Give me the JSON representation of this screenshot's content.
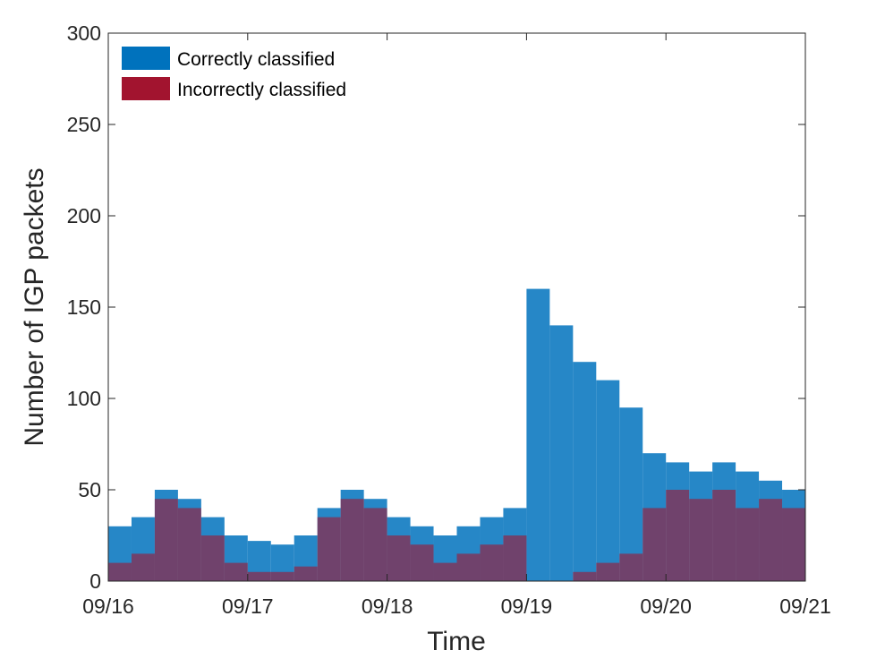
{
  "chart_data": {
    "type": "bar",
    "xlabel": "Time",
    "ylabel": "Number of IGP packets",
    "ylim": [
      0,
      300
    ],
    "yticks": [
      0,
      50,
      100,
      150,
      200,
      250,
      300
    ],
    "xlim": [
      "09/16",
      "09/21"
    ],
    "xtick_labels": [
      "09/16",
      "09/17",
      "09/18",
      "09/19",
      "09/20",
      "09/21"
    ],
    "grid": false,
    "legend_position": "top-left",
    "series": [
      {
        "name": "Correctly classified",
        "color": "#0072BD",
        "x": [
          "09/16 00:00",
          "09/16 04:00",
          "09/16 08:00",
          "09/16 12:00",
          "09/16 16:00",
          "09/16 20:00",
          "09/17 00:00",
          "09/17 04:00",
          "09/17 08:00",
          "09/17 12:00",
          "09/17 16:00",
          "09/17 20:00",
          "09/18 00:00",
          "09/18 04:00",
          "09/18 08:00",
          "09/18 12:00",
          "09/18 16:00",
          "09/18 20:00",
          "09/19 00:00",
          "09/19 04:00",
          "09/19 08:00",
          "09/19 12:00",
          "09/19 16:00",
          "09/19 20:00",
          "09/20 00:00",
          "09/20 04:00",
          "09/20 08:00",
          "09/20 12:00",
          "09/20 16:00",
          "09/20 20:00"
        ],
        "values": [
          30,
          35,
          50,
          45,
          35,
          25,
          22,
          20,
          25,
          40,
          50,
          45,
          35,
          30,
          25,
          30,
          35,
          40,
          160,
          140,
          120,
          110,
          95,
          70,
          65,
          60,
          65,
          60,
          55,
          50
        ]
      },
      {
        "name": "Incorrectly classified",
        "color": "#A2142F",
        "x": [
          "09/16 00:00",
          "09/16 04:00",
          "09/16 08:00",
          "09/16 12:00",
          "09/16 16:00",
          "09/16 20:00",
          "09/17 00:00",
          "09/17 04:00",
          "09/17 08:00",
          "09/17 12:00",
          "09/17 16:00",
          "09/17 20:00",
          "09/18 00:00",
          "09/18 04:00",
          "09/18 08:00",
          "09/18 12:00",
          "09/18 16:00",
          "09/18 20:00",
          "09/19 00:00",
          "09/19 04:00",
          "09/19 08:00",
          "09/19 12:00",
          "09/19 16:00",
          "09/19 20:00",
          "09/20 00:00",
          "09/20 04:00",
          "09/20 08:00",
          "09/20 12:00",
          "09/20 16:00",
          "09/20 20:00"
        ],
        "values": [
          10,
          15,
          45,
          40,
          25,
          10,
          5,
          5,
          8,
          35,
          45,
          40,
          25,
          20,
          10,
          15,
          20,
          25,
          0,
          0,
          5,
          10,
          15,
          40,
          50,
          45,
          50,
          40,
          45,
          40
        ]
      }
    ]
  }
}
